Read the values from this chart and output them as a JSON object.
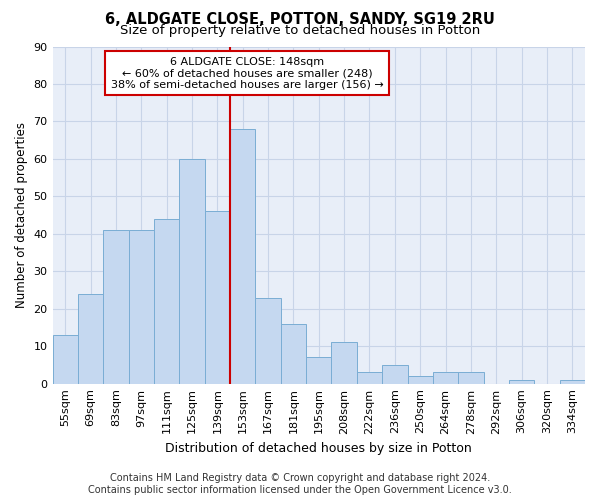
{
  "title_line1": "6, ALDGATE CLOSE, POTTON, SANDY, SG19 2RU",
  "title_line2": "Size of property relative to detached houses in Potton",
  "xlabel": "Distribution of detached houses by size in Potton",
  "ylabel": "Number of detached properties",
  "categories": [
    "55sqm",
    "69sqm",
    "83sqm",
    "97sqm",
    "111sqm",
    "125sqm",
    "139sqm",
    "153sqm",
    "167sqm",
    "181sqm",
    "195sqm",
    "208sqm",
    "222sqm",
    "236sqm",
    "250sqm",
    "264sqm",
    "278sqm",
    "292sqm",
    "306sqm",
    "320sqm",
    "334sqm"
  ],
  "values": [
    13,
    24,
    41,
    41,
    44,
    60,
    46,
    68,
    23,
    16,
    7,
    11,
    3,
    5,
    2,
    3,
    3,
    0,
    1,
    0,
    1
  ],
  "bar_color": "#c5d8f0",
  "bar_edge_color": "#7aadd4",
  "vline_color": "#cc0000",
  "vline_x_index": 7,
  "annotation_box_text": "6 ALDGATE CLOSE: 148sqm\n← 60% of detached houses are smaller (248)\n38% of semi-detached houses are larger (156) →",
  "annotation_box_facecolor": "#ffffff",
  "annotation_box_edgecolor": "#cc0000",
  "ylim": [
    0,
    90
  ],
  "yticks": [
    0,
    10,
    20,
    30,
    40,
    50,
    60,
    70,
    80,
    90
  ],
  "grid_color": "#c8d4e8",
  "bg_color": "#e8eef8",
  "footer_line1": "Contains HM Land Registry data © Crown copyright and database right 2024.",
  "footer_line2": "Contains public sector information licensed under the Open Government Licence v3.0.",
  "title_fontsize": 10.5,
  "subtitle_fontsize": 9.5,
  "xlabel_fontsize": 9,
  "ylabel_fontsize": 8.5,
  "tick_fontsize": 8,
  "annotation_fontsize": 8,
  "footer_fontsize": 7
}
